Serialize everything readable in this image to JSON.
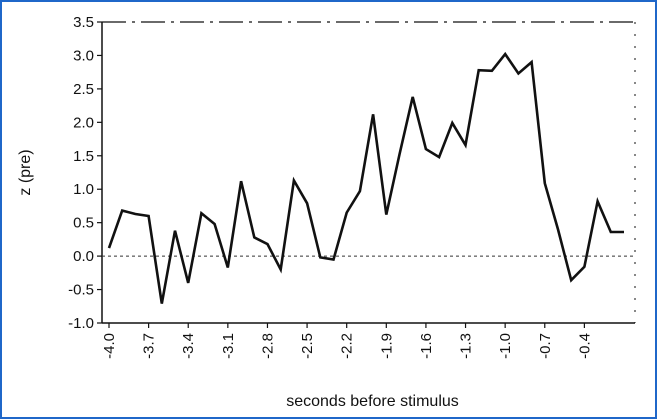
{
  "colors": {
    "frame": "#1f67c9",
    "line": "#111111",
    "axis": "#111111",
    "zero_line": "#333333"
  },
  "chart_data": {
    "type": "line",
    "title": "",
    "xlabel": "seconds before stimulus",
    "ylabel": "z (pre)",
    "xlim": [
      -4.0,
      -0.1
    ],
    "ylim": [
      -1.0,
      3.5
    ],
    "y_ticks": [
      "-1.0",
      "-0.5",
      "0.0",
      "0.5",
      "1.0",
      "1.5",
      "2.0",
      "2.5",
      "3.0",
      "3.5"
    ],
    "x_ticks": [
      "-4.0",
      "-3.7",
      "-3.4",
      "-3.1",
      "-2.8",
      "-2.5",
      "-2.2",
      "-1.9",
      "-1.6",
      "-1.3",
      "-1.0",
      "-0.7",
      "-0.4"
    ],
    "x_tick_values": [
      -4.0,
      -3.7,
      -3.4,
      -3.1,
      -2.8,
      -2.5,
      -2.2,
      -1.9,
      -1.6,
      -1.3,
      -1.0,
      -0.7,
      -0.4
    ],
    "grid": false,
    "reference_line": {
      "y": 0.0,
      "style": "dotted"
    },
    "series": [
      {
        "x": [
          -4.0,
          -3.9,
          -3.8,
          -3.7,
          -3.6,
          -3.5,
          -3.4,
          -3.3,
          -3.2,
          -3.1,
          -3.0,
          -2.9,
          -2.8,
          -2.7,
          -2.6,
          -2.5,
          -2.4,
          -2.3,
          -2.2,
          -2.1,
          -2.0,
          -1.9,
          -1.8,
          -1.7,
          -1.6,
          -1.5,
          -1.4,
          -1.3,
          -1.2,
          -1.1,
          -1.0,
          -0.9,
          -0.8,
          -0.7,
          -0.6,
          -0.5,
          -0.4,
          -0.3,
          -0.2,
          -0.1
        ],
        "values": [
          0.12,
          0.68,
          0.63,
          0.6,
          -0.71,
          0.38,
          -0.4,
          0.64,
          0.48,
          -0.17,
          1.12,
          0.28,
          0.18,
          -0.2,
          1.13,
          0.79,
          -0.02,
          -0.05,
          0.65,
          0.97,
          2.12,
          0.62,
          1.52,
          2.38,
          1.6,
          1.48,
          1.99,
          1.66,
          2.78,
          2.77,
          3.02,
          2.73,
          2.9,
          1.09,
          0.4,
          -0.36,
          -0.16,
          0.82,
          0.36,
          0.36
        ]
      }
    ]
  }
}
